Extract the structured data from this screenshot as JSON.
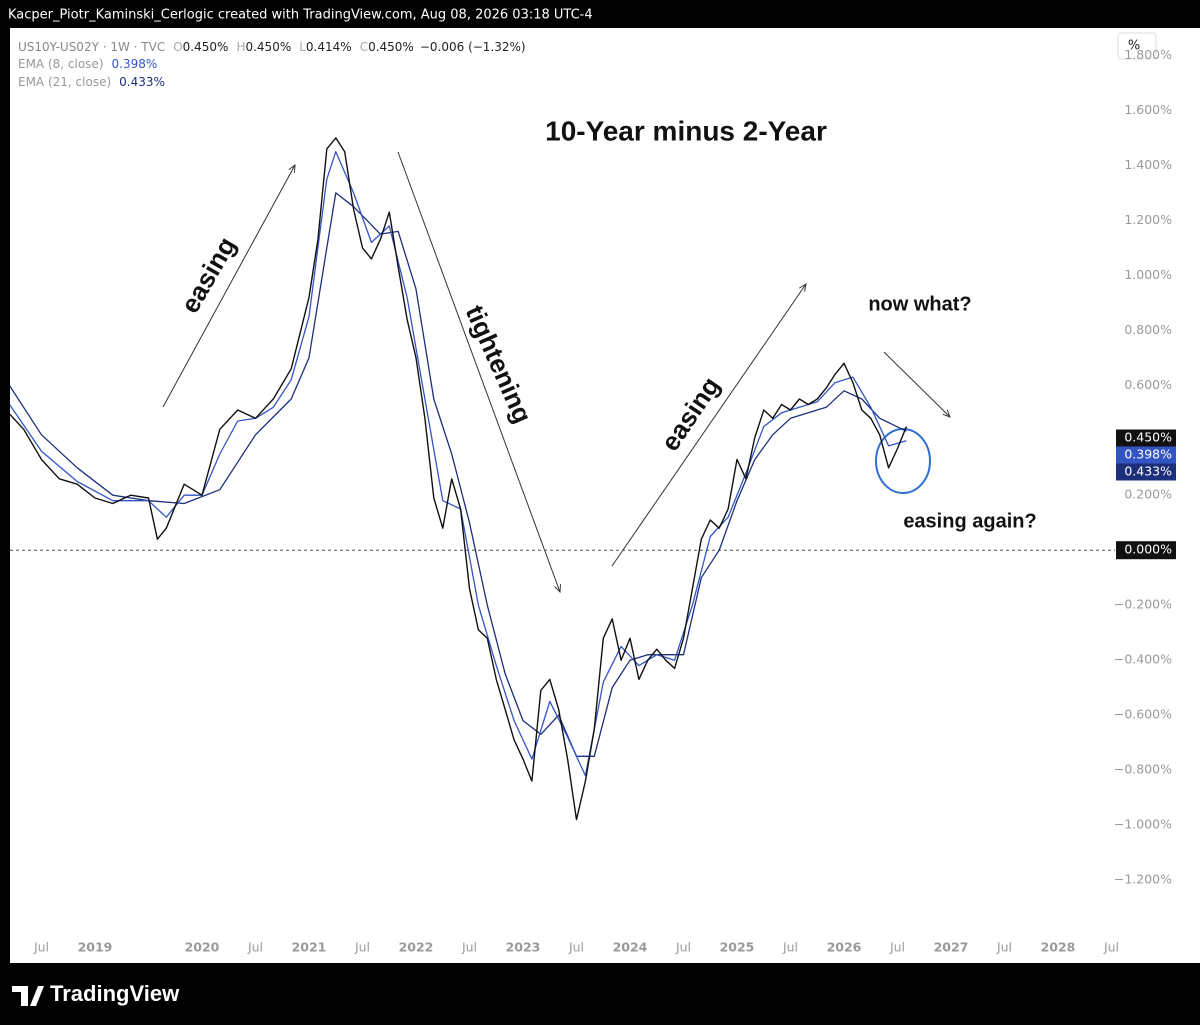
{
  "header": {
    "credit": "Kacper_Piotr_Kaminski_Cerlogic created with TradingView.com, Aug 08, 2026 03:18 UTC-4"
  },
  "footer": {
    "brand": "TradingView"
  },
  "chart_data": {
    "type": "line",
    "title": "10-Year minus 2-Year",
    "unit_button": "%",
    "symbol": "US10Y-US02Y · 1W · TVC",
    "ohlc": [
      {
        "key": "O",
        "text": "0.450%"
      },
      {
        "key": "H",
        "text": "0.450%"
      },
      {
        "key": "L",
        "text": "0.414%"
      },
      {
        "key": "C",
        "text": "0.450%"
      }
    ],
    "change": "−0.006 (−1.32%)",
    "annotations": [
      "easing",
      "tightening",
      "easing",
      "now what?",
      "easing again?"
    ],
    "ylim": [
      -1.4,
      1.9
    ],
    "yticks": [
      {
        "value": 1.8,
        "label": "1.800%"
      },
      {
        "value": 1.6,
        "label": "1.600%"
      },
      {
        "value": 1.4,
        "label": "1.400%"
      },
      {
        "value": 1.2,
        "label": "1.200%"
      },
      {
        "value": 1.0,
        "label": "1.000%"
      },
      {
        "value": 0.8,
        "label": "0.800%"
      },
      {
        "value": 0.6,
        "label": "0.600%"
      },
      {
        "value": 0.2,
        "label": "0.200%"
      },
      {
        "value": -0.2,
        "label": "−0.200%"
      },
      {
        "value": -0.4,
        "label": "−0.400%"
      },
      {
        "value": -0.6,
        "label": "−0.600%"
      },
      {
        "value": -0.8,
        "label": "−0.800%"
      },
      {
        "value": -1.0,
        "label": "−1.000%"
      },
      {
        "value": -1.2,
        "label": "−1.200%"
      }
    ],
    "xticks": [
      {
        "value": "2018-07",
        "label": "Jul"
      },
      {
        "value": "2019-01",
        "label": "2019"
      },
      {
        "value": "2020-01",
        "label": "2020"
      },
      {
        "value": "2020-07",
        "label": "Jul"
      },
      {
        "value": "2021-01",
        "label": "2021"
      },
      {
        "value": "2021-07",
        "label": "Jul"
      },
      {
        "value": "2022-01",
        "label": "2022"
      },
      {
        "value": "2022-07",
        "label": "Jul"
      },
      {
        "value": "2023-01",
        "label": "2023"
      },
      {
        "value": "2023-07",
        "label": "Jul"
      },
      {
        "value": "2024-01",
        "label": "2024"
      },
      {
        "value": "2024-07",
        "label": "Jul"
      },
      {
        "value": "2025-01",
        "label": "2025"
      },
      {
        "value": "2025-07",
        "label": "Jul"
      },
      {
        "value": "2026-01",
        "label": "2026"
      },
      {
        "value": "2026-07",
        "label": "Jul"
      },
      {
        "value": "2027-01",
        "label": "2027"
      },
      {
        "value": "2027-07",
        "label": "Jul"
      },
      {
        "value": "2028-01",
        "label": "2028"
      },
      {
        "value": "2028-07",
        "label": "Jul"
      }
    ],
    "zero_line": {
      "value": 0,
      "label": "0.000%"
    },
    "series": [
      {
        "name": "US10Y-US02Y · 1W · TVC",
        "color": "#111111",
        "last_label": "0.450%",
        "x": [
          "2018-03",
          "2018-05",
          "2018-07",
          "2018-09",
          "2018-11",
          "2019-01",
          "2019-03",
          "2019-05",
          "2019-07",
          "2019-08",
          "2019-09",
          "2019-11",
          "2020-01",
          "2020-03",
          "2020-05",
          "2020-07",
          "2020-09",
          "2020-11",
          "2021-01",
          "2021-02",
          "2021-03",
          "2021-04",
          "2021-05",
          "2021-06",
          "2021-07",
          "2021-08",
          "2021-09",
          "2021-10",
          "2021-11",
          "2021-12",
          "2022-01",
          "2022-02",
          "2022-03",
          "2022-04",
          "2022-05",
          "2022-06",
          "2022-07",
          "2022-08",
          "2022-09",
          "2022-10",
          "2022-11",
          "2022-12",
          "2023-01",
          "2023-02",
          "2023-03",
          "2023-04",
          "2023-05",
          "2023-06",
          "2023-07",
          "2023-08",
          "2023-09",
          "2023-10",
          "2023-11",
          "2023-12",
          "2024-01",
          "2024-02",
          "2024-03",
          "2024-04",
          "2024-05",
          "2024-06",
          "2024-07",
          "2024-08",
          "2024-09",
          "2024-10",
          "2024-11",
          "2024-12",
          "2025-01",
          "2025-02",
          "2025-03",
          "2025-04",
          "2025-05",
          "2025-06",
          "2025-07",
          "2025-08",
          "2025-09",
          "2025-10",
          "2025-11",
          "2025-12",
          "2026-01",
          "2026-02",
          "2026-03",
          "2026-04",
          "2026-05",
          "2026-06",
          "2026-07",
          "2026-08"
        ],
        "values": [
          0.51,
          0.44,
          0.33,
          0.26,
          0.24,
          0.19,
          0.17,
          0.2,
          0.19,
          0.04,
          0.08,
          0.24,
          0.2,
          0.44,
          0.51,
          0.48,
          0.55,
          0.66,
          0.92,
          1.13,
          1.46,
          1.5,
          1.45,
          1.24,
          1.1,
          1.06,
          1.13,
          1.23,
          1.03,
          0.84,
          0.7,
          0.48,
          0.19,
          0.08,
          0.26,
          0.15,
          -0.14,
          -0.29,
          -0.32,
          -0.47,
          -0.58,
          -0.69,
          -0.76,
          -0.84,
          -0.51,
          -0.47,
          -0.58,
          -0.76,
          -0.98,
          -0.84,
          -0.65,
          -0.32,
          -0.25,
          -0.4,
          -0.32,
          -0.47,
          -0.4,
          -0.36,
          -0.4,
          -0.43,
          -0.32,
          -0.14,
          0.04,
          0.11,
          0.08,
          0.15,
          0.33,
          0.26,
          0.41,
          0.51,
          0.48,
          0.53,
          0.51,
          0.55,
          0.53,
          0.55,
          0.59,
          0.64,
          0.68,
          0.61,
          0.51,
          0.48,
          0.42,
          0.3,
          0.37,
          0.45
        ]
      },
      {
        "name": "EMA (8, close)",
        "color": "#3355c4",
        "last_label": "0.398%",
        "x": [
          "2018-03",
          "2018-07",
          "2018-11",
          "2019-03",
          "2019-07",
          "2019-09",
          "2019-11",
          "2020-01",
          "2020-03",
          "2020-05",
          "2020-07",
          "2020-09",
          "2020-11",
          "2021-01",
          "2021-03",
          "2021-04",
          "2021-06",
          "2021-08",
          "2021-10",
          "2021-12",
          "2022-02",
          "2022-04",
          "2022-06",
          "2022-08",
          "2022-10",
          "2022-12",
          "2023-02",
          "2023-04",
          "2023-06",
          "2023-08",
          "2023-10",
          "2023-12",
          "2024-02",
          "2024-04",
          "2024-06",
          "2024-08",
          "2024-10",
          "2024-12",
          "2025-02",
          "2025-04",
          "2025-06",
          "2025-08",
          "2025-10",
          "2025-12",
          "2026-02",
          "2026-04",
          "2026-06",
          "2026-08"
        ],
        "values": [
          0.55,
          0.36,
          0.25,
          0.18,
          0.18,
          0.12,
          0.2,
          0.2,
          0.35,
          0.47,
          0.48,
          0.52,
          0.62,
          0.85,
          1.35,
          1.45,
          1.3,
          1.12,
          1.18,
          0.92,
          0.55,
          0.18,
          0.15,
          -0.2,
          -0.42,
          -0.62,
          -0.76,
          -0.55,
          -0.68,
          -0.82,
          -0.48,
          -0.35,
          -0.42,
          -0.38,
          -0.4,
          -0.2,
          0.05,
          0.12,
          0.28,
          0.45,
          0.5,
          0.52,
          0.54,
          0.61,
          0.63,
          0.52,
          0.38,
          0.398
        ]
      },
      {
        "name": "EMA (21, close)",
        "color": "#1c2f7a",
        "last_label": "0.433%",
        "x": [
          "2018-03",
          "2018-07",
          "2018-11",
          "2019-03",
          "2019-07",
          "2019-11",
          "2020-03",
          "2020-07",
          "2020-11",
          "2021-01",
          "2021-03",
          "2021-04",
          "2021-06",
          "2021-09",
          "2021-11",
          "2022-01",
          "2022-03",
          "2022-05",
          "2022-07",
          "2022-09",
          "2022-11",
          "2023-01",
          "2023-03",
          "2023-05",
          "2023-07",
          "2023-09",
          "2023-11",
          "2024-01",
          "2024-03",
          "2024-05",
          "2024-07",
          "2024-09",
          "2024-11",
          "2025-01",
          "2025-03",
          "2025-05",
          "2025-07",
          "2025-09",
          "2025-11",
          "2026-01",
          "2026-03",
          "2026-05",
          "2026-08"
        ],
        "values": [
          0.62,
          0.42,
          0.3,
          0.2,
          0.18,
          0.17,
          0.22,
          0.42,
          0.55,
          0.7,
          1.1,
          1.3,
          1.25,
          1.15,
          1.16,
          0.95,
          0.55,
          0.35,
          0.1,
          -0.2,
          -0.45,
          -0.62,
          -0.67,
          -0.6,
          -0.75,
          -0.75,
          -0.5,
          -0.4,
          -0.38,
          -0.38,
          -0.38,
          -0.1,
          0.0,
          0.18,
          0.33,
          0.42,
          0.48,
          0.5,
          0.52,
          0.58,
          0.55,
          0.48,
          0.433
        ]
      }
    ]
  }
}
